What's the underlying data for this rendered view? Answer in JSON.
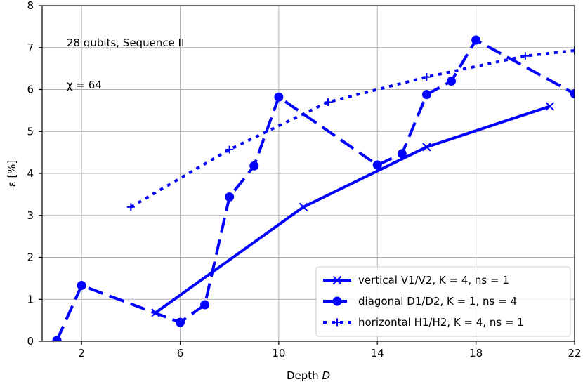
{
  "chart_data": {
    "type": "line",
    "title": "",
    "xlabel": "Depth D",
    "ylabel": "ε [%]",
    "xlim": [
      0.4,
      22
    ],
    "ylim": [
      0,
      8
    ],
    "xticks": [
      2,
      6,
      10,
      14,
      18,
      22
    ],
    "yticks": [
      0,
      1,
      2,
      3,
      4,
      5,
      6,
      7,
      8
    ],
    "grid": true,
    "legend_position": "lower-right",
    "annotations": [
      "28 qubits, Sequence II",
      "χ = 64"
    ],
    "series": [
      {
        "name": "vertical V1/V2, K = 4, ns = 1",
        "color": "#0000ff",
        "line_style": "solid",
        "marker": "x",
        "x": [
          5,
          11,
          16,
          21
        ],
        "y": [
          0.68,
          3.2,
          4.63,
          5.6
        ]
      },
      {
        "name": "diagonal D1/D2, K = 1, ns = 4",
        "color": "#0000ff",
        "line_style": "dashed",
        "marker": "circle",
        "x": [
          1,
          2,
          6,
          7,
          8,
          9,
          10,
          14,
          15,
          16,
          17,
          18,
          22
        ],
        "y": [
          0.02,
          1.33,
          0.45,
          0.87,
          3.44,
          4.18,
          5.82,
          4.2,
          4.47,
          5.88,
          6.2,
          7.18,
          5.9
        ]
      },
      {
        "name": "horizontal H1/H2, K = 4, ns = 1",
        "color": "#0000ff",
        "line_style": "dotted",
        "marker": "plus",
        "x": [
          4,
          8,
          12,
          16,
          20,
          22
        ],
        "y": [
          3.2,
          4.57,
          5.7,
          6.3,
          6.8,
          6.93
        ]
      }
    ]
  }
}
